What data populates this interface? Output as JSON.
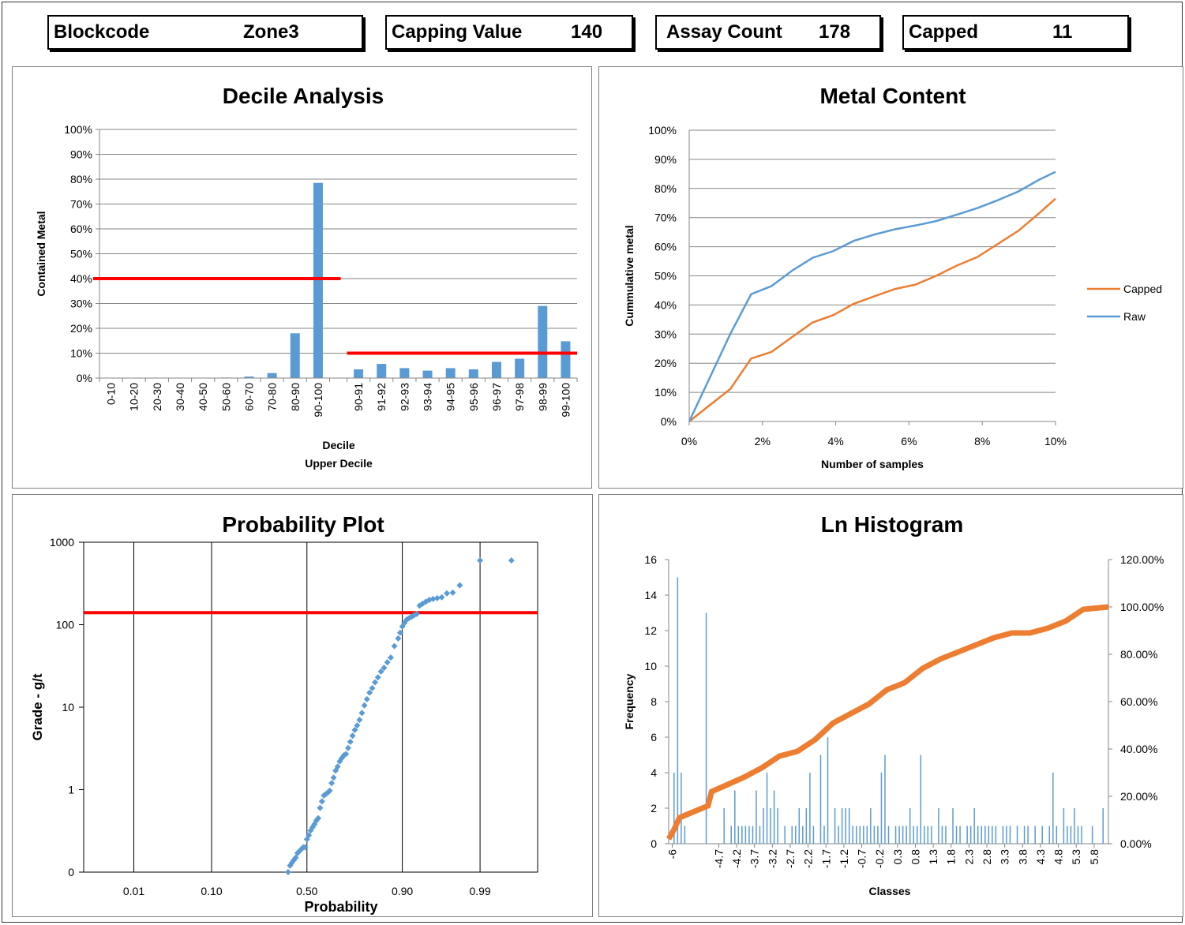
{
  "header": {
    "blockcode": {
      "label": "Blockcode",
      "value": "Zone3"
    },
    "capping": {
      "label": "Capping Value",
      "value": "140"
    },
    "assay": {
      "label": "Assay Count",
      "value": "178"
    },
    "capped": {
      "label": "Capped",
      "value": "11"
    }
  },
  "colors": {
    "bar": "#5b9bd5",
    "raw": "#5b9bd5",
    "capped": "#ed7d31",
    "threshold": "#ff0000",
    "grid": "#868686"
  },
  "chart_data": [
    {
      "type": "bar",
      "title": "Decile Analysis",
      "ylabel": "Contained Metal",
      "xlabel": "Decile",
      "xlabel2": "Upper Decile",
      "ylim": [
        0,
        1
      ],
      "yticks": [
        "0%",
        "10%",
        "20%",
        "30%",
        "40%",
        "50%",
        "60%",
        "70%",
        "80%",
        "90%",
        "100%"
      ],
      "categories": [
        "0-10",
        "10-20",
        "20-30",
        "30-40",
        "40-50",
        "50-60",
        "60-70",
        "70-80",
        "80-90",
        "90-100",
        "90-91",
        "91-92",
        "92-93",
        "93-94",
        "94-95",
        "95-96",
        "96-97",
        "97-98",
        "98-99",
        "99-100"
      ],
      "values": [
        0,
        0,
        0.001,
        0.001,
        0.001,
        0.002,
        0.006,
        0.02,
        0.18,
        0.785,
        0.035,
        0.057,
        0.04,
        0.03,
        0.04,
        0.035,
        0.065,
        0.078,
        0.29,
        0.148
      ],
      "threshold_lines": [
        {
          "y": 0.4,
          "range": "deciles"
        },
        {
          "y": 0.1,
          "range": "upper-deciles"
        }
      ]
    },
    {
      "type": "line",
      "title": "Metal Content",
      "xlabel": "Number of samples",
      "ylabel": "Cummulative metal",
      "xlim": [
        0,
        0.1
      ],
      "ylim": [
        0,
        1
      ],
      "xticks": [
        "0%",
        "2%",
        "4%",
        "6%",
        "8%",
        "10%"
      ],
      "yticks": [
        "0%",
        "10%",
        "20%",
        "30%",
        "40%",
        "50%",
        "60%",
        "70%",
        "80%",
        "90%",
        "100%"
      ],
      "legend": "right",
      "series": [
        {
          "name": "Capped",
          "x": [
            0,
            0.0056,
            0.0112,
            0.0169,
            0.0225,
            0.0281,
            0.0337,
            0.0393,
            0.0449,
            0.0506,
            0.0562,
            0.0618,
            0.0674,
            0.073,
            0.0787,
            0.0843,
            0.0899,
            0.0955,
            0.1
          ],
          "y": [
            0,
            0.056,
            0.111,
            0.216,
            0.239,
            0.29,
            0.34,
            0.365,
            0.404,
            0.43,
            0.455,
            0.47,
            0.5,
            0.535,
            0.565,
            0.61,
            0.655,
            0.715,
            0.765
          ]
        },
        {
          "name": "Raw",
          "x": [
            0,
            0.0056,
            0.0112,
            0.0169,
            0.0225,
            0.0281,
            0.0337,
            0.0393,
            0.0449,
            0.0506,
            0.0562,
            0.0618,
            0.0674,
            0.073,
            0.0787,
            0.0843,
            0.0899,
            0.0955,
            0.1
          ],
          "y": [
            0,
            0.15,
            0.3,
            0.437,
            0.465,
            0.518,
            0.562,
            0.585,
            0.62,
            0.642,
            0.66,
            0.673,
            0.688,
            0.71,
            0.733,
            0.76,
            0.79,
            0.83,
            0.857
          ]
        }
      ]
    },
    {
      "type": "scatter",
      "title": "Probability Plot",
      "xlabel": "Probability",
      "ylabel": "Grade - g/t",
      "ylog": true,
      "ylim": [
        0.1,
        1000
      ],
      "yticks": [
        {
          "v": 0.1,
          "label": "0"
        },
        {
          "v": 1,
          "label": "1"
        },
        {
          "v": 10,
          "label": "10"
        },
        {
          "v": 100,
          "label": "100"
        },
        {
          "v": 1000,
          "label": "1000"
        }
      ],
      "xticks": [
        {
          "p": 0.01,
          "label": "0.01"
        },
        {
          "p": 0.1,
          "label": "0.10"
        },
        {
          "p": 0.5,
          "label": "0.50"
        },
        {
          "p": 0.9,
          "label": "0.90"
        },
        {
          "p": 0.99,
          "label": "0.99"
        }
      ],
      "xlim_probit": [
        -3,
        3.1
      ],
      "threshold": 140,
      "points": [
        [
          0.4,
          0.1
        ],
        [
          0.41,
          0.12
        ],
        [
          0.42,
          0.13
        ],
        [
          0.43,
          0.14
        ],
        [
          0.44,
          0.15
        ],
        [
          0.45,
          0.17
        ],
        [
          0.46,
          0.18
        ],
        [
          0.47,
          0.19
        ],
        [
          0.48,
          0.2
        ],
        [
          0.49,
          0.2
        ],
        [
          0.5,
          0.25
        ],
        [
          0.51,
          0.28
        ],
        [
          0.52,
          0.32
        ],
        [
          0.53,
          0.35
        ],
        [
          0.54,
          0.38
        ],
        [
          0.55,
          0.42
        ],
        [
          0.56,
          0.45
        ],
        [
          0.57,
          0.6
        ],
        [
          0.58,
          0.72
        ],
        [
          0.59,
          0.85
        ],
        [
          0.6,
          0.88
        ],
        [
          0.61,
          0.92
        ],
        [
          0.62,
          0.97
        ],
        [
          0.63,
          1.2
        ],
        [
          0.64,
          1.4
        ],
        [
          0.65,
          1.7
        ],
        [
          0.66,
          1.9
        ],
        [
          0.67,
          2.2
        ],
        [
          0.68,
          2.4
        ],
        [
          0.69,
          2.6
        ],
        [
          0.7,
          2.7
        ],
        [
          0.71,
          3.2
        ],
        [
          0.72,
          3.8
        ],
        [
          0.73,
          4.5
        ],
        [
          0.74,
          5.3
        ],
        [
          0.75,
          6.0
        ],
        [
          0.76,
          7.0
        ],
        [
          0.77,
          8.5
        ],
        [
          0.78,
          10.5
        ],
        [
          0.79,
          12.5
        ],
        [
          0.8,
          15
        ],
        [
          0.81,
          17
        ],
        [
          0.82,
          20
        ],
        [
          0.83,
          23
        ],
        [
          0.84,
          27
        ],
        [
          0.85,
          30
        ],
        [
          0.86,
          35
        ],
        [
          0.87,
          40
        ],
        [
          0.88,
          55
        ],
        [
          0.89,
          68
        ],
        [
          0.895,
          80
        ],
        [
          0.9,
          95
        ],
        [
          0.905,
          105
        ],
        [
          0.91,
          115
        ],
        [
          0.915,
          120
        ],
        [
          0.92,
          125
        ],
        [
          0.925,
          130
        ],
        [
          0.93,
          135
        ],
        [
          0.935,
          170
        ],
        [
          0.94,
          180
        ],
        [
          0.945,
          190
        ],
        [
          0.95,
          200
        ],
        [
          0.955,
          205
        ],
        [
          0.96,
          210
        ],
        [
          0.965,
          215
        ],
        [
          0.97,
          240
        ],
        [
          0.975,
          245
        ],
        [
          0.98,
          300
        ],
        [
          0.99,
          600
        ],
        [
          0.997,
          600
        ]
      ]
    },
    {
      "type": "bar",
      "title": "Ln Histogram",
      "xlabel": "Classes",
      "ylabel": "Frequency",
      "ylim": [
        0,
        16
      ],
      "y2lim": [
        0,
        1.2
      ],
      "yticks": [
        "0",
        "2",
        "4",
        "6",
        "8",
        "10",
        "12",
        "14",
        "16"
      ],
      "y2ticks": [
        "0.00%",
        "20.00%",
        "40.00%",
        "60.00%",
        "80.00%",
        "100.00%",
        "120.00%"
      ],
      "xticks": [
        "-6",
        "-4.7",
        "-4.2",
        "-3.7",
        "-3.2",
        "-2.7",
        "-2.2",
        "-1.7",
        "-1.2",
        "-0.7",
        "-0.2",
        "0.3",
        "0.8",
        "1.3",
        "1.8",
        "2.3",
        "2.8",
        "3.3",
        "3.8",
        "4.3",
        "4.8",
        "5.3",
        "5.8"
      ],
      "x_range": [
        -6.1,
        6.2
      ],
      "bars": [
        [
          -5.95,
          4
        ],
        [
          -5.85,
          15
        ],
        [
          -5.75,
          4
        ],
        [
          -5.65,
          1
        ],
        [
          -5.05,
          13
        ],
        [
          -4.55,
          2
        ],
        [
          -4.35,
          1
        ],
        [
          -4.25,
          3
        ],
        [
          -4.15,
          1
        ],
        [
          -4.05,
          1
        ],
        [
          -3.95,
          1
        ],
        [
          -3.85,
          1
        ],
        [
          -3.75,
          1
        ],
        [
          -3.65,
          3
        ],
        [
          -3.55,
          1
        ],
        [
          -3.45,
          2
        ],
        [
          -3.35,
          4
        ],
        [
          -3.25,
          2
        ],
        [
          -3.15,
          3
        ],
        [
          -3.05,
          2
        ],
        [
          -2.85,
          1
        ],
        [
          -2.65,
          1
        ],
        [
          -2.55,
          1
        ],
        [
          -2.45,
          2
        ],
        [
          -2.35,
          1
        ],
        [
          -2.25,
          2
        ],
        [
          -2.15,
          4
        ],
        [
          -2.05,
          1
        ],
        [
          -1.85,
          5
        ],
        [
          -1.75,
          1
        ],
        [
          -1.65,
          6
        ],
        [
          -1.45,
          2
        ],
        [
          -1.35,
          1
        ],
        [
          -1.25,
          2
        ],
        [
          -1.15,
          2
        ],
        [
          -1.05,
          2
        ],
        [
          -0.95,
          1
        ],
        [
          -0.85,
          1
        ],
        [
          -0.75,
          1
        ],
        [
          -0.65,
          1
        ],
        [
          -0.55,
          1
        ],
        [
          -0.45,
          2
        ],
        [
          -0.35,
          1
        ],
        [
          -0.25,
          1
        ],
        [
          -0.15,
          4
        ],
        [
          -0.05,
          5
        ],
        [
          0.05,
          1
        ],
        [
          0.25,
          1
        ],
        [
          0.35,
          1
        ],
        [
          0.45,
          1
        ],
        [
          0.55,
          1
        ],
        [
          0.65,
          2
        ],
        [
          0.75,
          1
        ],
        [
          0.85,
          1
        ],
        [
          0.95,
          5
        ],
        [
          1.05,
          1
        ],
        [
          1.15,
          1
        ],
        [
          1.25,
          1
        ],
        [
          1.45,
          2
        ],
        [
          1.55,
          1
        ],
        [
          1.65,
          1
        ],
        [
          1.85,
          2
        ],
        [
          1.95,
          1
        ],
        [
          2.05,
          1
        ],
        [
          2.25,
          1
        ],
        [
          2.35,
          1
        ],
        [
          2.45,
          2
        ],
        [
          2.55,
          1
        ],
        [
          2.65,
          1
        ],
        [
          2.75,
          1
        ],
        [
          2.85,
          1
        ],
        [
          2.95,
          1
        ],
        [
          3.05,
          1
        ],
        [
          3.25,
          1
        ],
        [
          3.35,
          1
        ],
        [
          3.45,
          1
        ],
        [
          3.65,
          1
        ],
        [
          3.85,
          1
        ],
        [
          3.95,
          1
        ],
        [
          4.15,
          1
        ],
        [
          4.35,
          1
        ],
        [
          4.55,
          1
        ],
        [
          4.65,
          4
        ],
        [
          4.75,
          1
        ],
        [
          4.95,
          2
        ],
        [
          5.05,
          1
        ],
        [
          5.15,
          1
        ],
        [
          5.25,
          2
        ],
        [
          5.35,
          1
        ],
        [
          5.45,
          1
        ],
        [
          5.75,
          1
        ],
        [
          6.05,
          2
        ]
      ],
      "cumulative": {
        "x": [
          -6.1,
          -5.95,
          -5.8,
          -5.0,
          -4.9,
          -4.0,
          -3.5,
          -3.0,
          -2.5,
          -2.0,
          -1.5,
          -1.0,
          -0.5,
          0.0,
          0.5,
          1.0,
          1.5,
          2.0,
          2.5,
          3.0,
          3.5,
          4.0,
          4.5,
          5.0,
          5.5,
          6.2
        ],
        "y": [
          0.02,
          0.06,
          0.11,
          0.16,
          0.22,
          0.28,
          0.32,
          0.37,
          0.39,
          0.44,
          0.51,
          0.55,
          0.59,
          0.65,
          0.68,
          0.74,
          0.78,
          0.81,
          0.84,
          0.87,
          0.89,
          0.89,
          0.91,
          0.94,
          0.99,
          1.0
        ]
      }
    }
  ]
}
